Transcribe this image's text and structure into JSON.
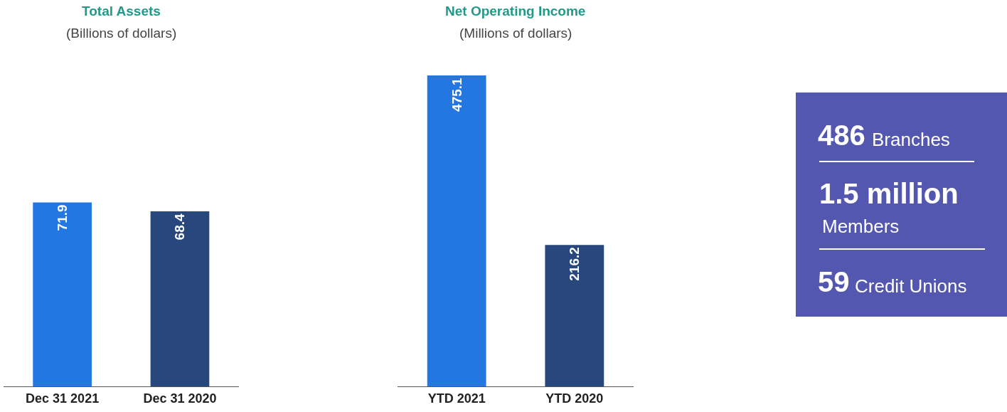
{
  "chart_data": [
    {
      "type": "bar",
      "title": "Total Assets",
      "subtitle": "(Billions of dollars)",
      "categories": [
        "Dec 31 2021",
        "Dec 31 2020"
      ],
      "values": [
        71.9,
        68.4
      ],
      "colors": [
        "#2277e0",
        "#28477c"
      ],
      "data_labels": true
    },
    {
      "type": "bar",
      "title": "Net Operating Income",
      "subtitle": "(Millions of dollars)",
      "categories": [
        "YTD 2021",
        "YTD 2020"
      ],
      "values": [
        475.1,
        216.2
      ],
      "colors": [
        "#2277e0",
        "#28477c"
      ],
      "data_labels": true
    },
    {
      "type": "other",
      "color": "#5457b0",
      "annotations": [
        "486",
        "Branches",
        "1.5 million",
        "Members",
        "59",
        "Credit Unions"
      ]
    }
  ]
}
